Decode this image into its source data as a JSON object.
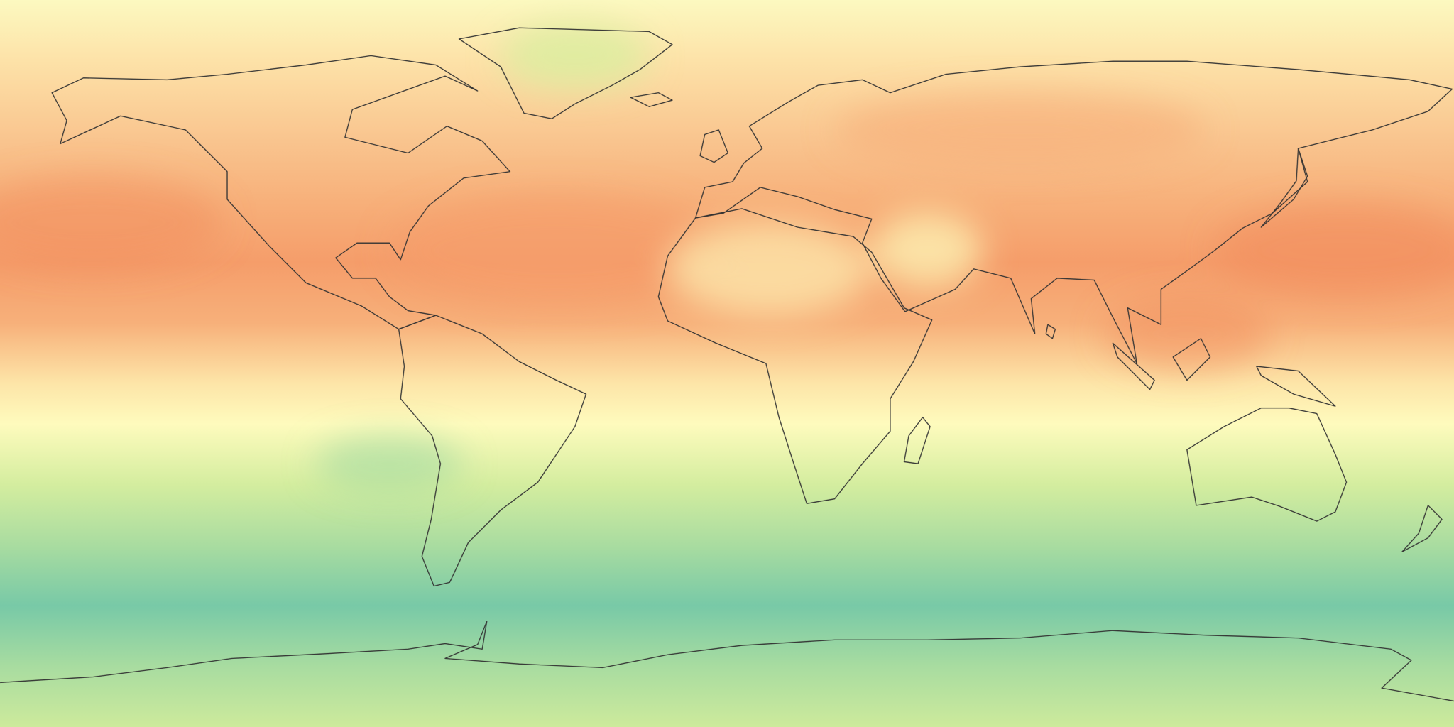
{
  "map": {
    "projection": "equirectangular",
    "coastline_color": "#333333",
    "colormap": {
      "hot": "#f08a5a",
      "warm": "#f8b57f",
      "neutral": "#fefbbd",
      "mild": "#d6eea0",
      "cool": "#a8dba0",
      "cold": "#72c7a8"
    },
    "latitude_bands": [
      {
        "from_lat": 90,
        "color": "#fcf9c0"
      },
      {
        "from_lat": 75,
        "color": "#fde2a8"
      },
      {
        "from_lat": 55,
        "color": "#f9c48e"
      },
      {
        "from_lat": 40,
        "color": "#f7b07a"
      },
      {
        "from_lat": 25,
        "color": "#f59d6a"
      },
      {
        "from_lat": 10,
        "color": "#f7b07a"
      },
      {
        "from_lat": -5,
        "color": "#fde5a8"
      },
      {
        "from_lat": -15,
        "color": "#fefbbd"
      },
      {
        "from_lat": -30,
        "color": "#d4ed9f"
      },
      {
        "from_lat": -45,
        "color": "#a9dca0"
      },
      {
        "from_lat": -60,
        "color": "#78c9a7"
      },
      {
        "from_lat": -75,
        "color": "#a8dca0"
      },
      {
        "from_lat": -90,
        "color": "#cdea9c"
      }
    ]
  }
}
